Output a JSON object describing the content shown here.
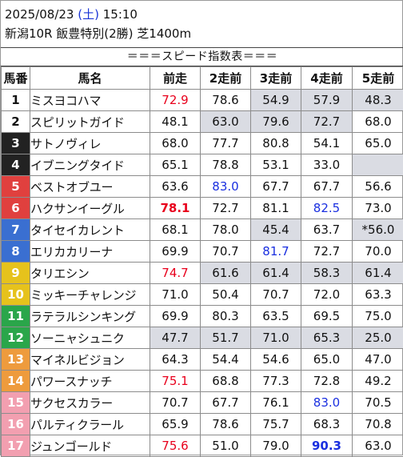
{
  "header": {
    "date": "2025/08/23",
    "day_of_week": "(土)",
    "time": "15:10",
    "race_info": "新潟10R 飯豊特別(2勝) 芝1400m"
  },
  "subtitle": "＝＝＝スピード指数表＝＝＝",
  "columns": [
    "馬番",
    "馬名",
    "前走",
    "2走前",
    "3走前",
    "4走前",
    "5走前"
  ],
  "colors": {
    "highlight_red": "#e8001c",
    "highlight_blue": "#1a2fe0",
    "shade": "#dadce3"
  },
  "horses": [
    {
      "num": "1",
      "name": "ミスヨコハマ",
      "bg": "#ffffff",
      "fg": "#111111",
      "runs": [
        {
          "v": "72.9",
          "c": "red"
        },
        {
          "v": "78.6"
        },
        {
          "v": "54.9",
          "s": 1
        },
        {
          "v": "57.9",
          "s": 1
        },
        {
          "v": "48.3",
          "s": 1
        }
      ]
    },
    {
      "num": "2",
      "name": "スピリットガイド",
      "bg": "#ffffff",
      "fg": "#111111",
      "runs": [
        {
          "v": "48.1"
        },
        {
          "v": "63.0",
          "s": 1
        },
        {
          "v": "79.6",
          "s": 1
        },
        {
          "v": "72.7",
          "s": 1
        },
        {
          "v": "68.0"
        }
      ]
    },
    {
      "num": "3",
      "name": "サトノヴィレ",
      "bg": "#222222",
      "fg": "#ffffff",
      "runs": [
        {
          "v": "68.0"
        },
        {
          "v": "77.7"
        },
        {
          "v": "80.8"
        },
        {
          "v": "54.1"
        },
        {
          "v": "65.0"
        }
      ]
    },
    {
      "num": "4",
      "name": "イブニングタイド",
      "bg": "#222222",
      "fg": "#ffffff",
      "runs": [
        {
          "v": "65.1"
        },
        {
          "v": "78.8"
        },
        {
          "v": "53.1"
        },
        {
          "v": "33.0"
        },
        {
          "v": "",
          "s": 1
        }
      ]
    },
    {
      "num": "5",
      "name": "ベストオブユー",
      "bg": "#e0403e",
      "fg": "#ffffff",
      "runs": [
        {
          "v": "63.6"
        },
        {
          "v": "83.0",
          "c": "blue"
        },
        {
          "v": "67.7"
        },
        {
          "v": "67.7"
        },
        {
          "v": "56.6"
        }
      ]
    },
    {
      "num": "6",
      "name": "ハクサンイーグル",
      "bg": "#e0403e",
      "fg": "#ffffff",
      "runs": [
        {
          "v": "78.1",
          "c": "red-b"
        },
        {
          "v": "72.7"
        },
        {
          "v": "81.1"
        },
        {
          "v": "82.5",
          "c": "blue"
        },
        {
          "v": "73.0"
        }
      ]
    },
    {
      "num": "7",
      "name": "タイセイカレント",
      "bg": "#3a6fd1",
      "fg": "#ffffff",
      "runs": [
        {
          "v": "68.1"
        },
        {
          "v": "78.0"
        },
        {
          "v": "45.4",
          "s": 1
        },
        {
          "v": "63.7"
        },
        {
          "v": "*56.0",
          "s": 1
        }
      ]
    },
    {
      "num": "8",
      "name": "エリカカリーナ",
      "bg": "#3a6fd1",
      "fg": "#ffffff",
      "runs": [
        {
          "v": "69.9"
        },
        {
          "v": "70.7"
        },
        {
          "v": "81.7",
          "c": "blue"
        },
        {
          "v": "72.7"
        },
        {
          "v": "70.0"
        }
      ]
    },
    {
      "num": "9",
      "name": "タリエシン",
      "bg": "#e6c21c",
      "fg": "#ffffff",
      "runs": [
        {
          "v": "74.7",
          "c": "red"
        },
        {
          "v": "61.6",
          "s": 1
        },
        {
          "v": "61.4",
          "s": 1
        },
        {
          "v": "58.3",
          "s": 1
        },
        {
          "v": "61.4",
          "s": 1
        }
      ]
    },
    {
      "num": "10",
      "name": "ミッキーチャレンジ",
      "bg": "#e6c21c",
      "fg": "#ffffff",
      "runs": [
        {
          "v": "71.0"
        },
        {
          "v": "50.4"
        },
        {
          "v": "70.7"
        },
        {
          "v": "72.0"
        },
        {
          "v": "63.3"
        }
      ]
    },
    {
      "num": "11",
      "name": "ラテラルシンキング",
      "bg": "#2aa64a",
      "fg": "#ffffff",
      "runs": [
        {
          "v": "69.9"
        },
        {
          "v": "80.3"
        },
        {
          "v": "63.5"
        },
        {
          "v": "69.5"
        },
        {
          "v": "75.0"
        }
      ]
    },
    {
      "num": "12",
      "name": "ソーニャシュニク",
      "bg": "#2aa64a",
      "fg": "#ffffff",
      "runs": [
        {
          "v": "47.7",
          "s": 1
        },
        {
          "v": "51.7",
          "s": 1
        },
        {
          "v": "71.0",
          "s": 1
        },
        {
          "v": "65.3",
          "s": 1
        },
        {
          "v": "25.0",
          "s": 1
        }
      ]
    },
    {
      "num": "13",
      "name": "マイネルビジョン",
      "bg": "#ee9b3d",
      "fg": "#ffffff",
      "runs": [
        {
          "v": "64.3"
        },
        {
          "v": "54.4"
        },
        {
          "v": "54.6"
        },
        {
          "v": "65.0"
        },
        {
          "v": "47.0"
        }
      ]
    },
    {
      "num": "14",
      "name": "パワースナッチ",
      "bg": "#ee9b3d",
      "fg": "#ffffff",
      "runs": [
        {
          "v": "75.1",
          "c": "red"
        },
        {
          "v": "68.8"
        },
        {
          "v": "77.3"
        },
        {
          "v": "72.8"
        },
        {
          "v": "49.2"
        }
      ]
    },
    {
      "num": "15",
      "name": "サクセスカラー",
      "bg": "#f29fb0",
      "fg": "#ffffff",
      "runs": [
        {
          "v": "70.7"
        },
        {
          "v": "67.7"
        },
        {
          "v": "76.1"
        },
        {
          "v": "83.0",
          "c": "blue"
        },
        {
          "v": "70.5"
        }
      ]
    },
    {
      "num": "16",
      "name": "パルティクラール",
      "bg": "#f29fb0",
      "fg": "#ffffff",
      "runs": [
        {
          "v": "65.9"
        },
        {
          "v": "78.6"
        },
        {
          "v": "75.7"
        },
        {
          "v": "68.3"
        },
        {
          "v": "70.8"
        }
      ]
    },
    {
      "num": "17",
      "name": "ジュンゴールド",
      "bg": "#f29fb0",
      "fg": "#ffffff",
      "runs": [
        {
          "v": "75.6",
          "c": "red"
        },
        {
          "v": "51.0"
        },
        {
          "v": "79.0"
        },
        {
          "v": "90.3",
          "c": "blue-b"
        },
        {
          "v": "63.0"
        }
      ]
    }
  ]
}
